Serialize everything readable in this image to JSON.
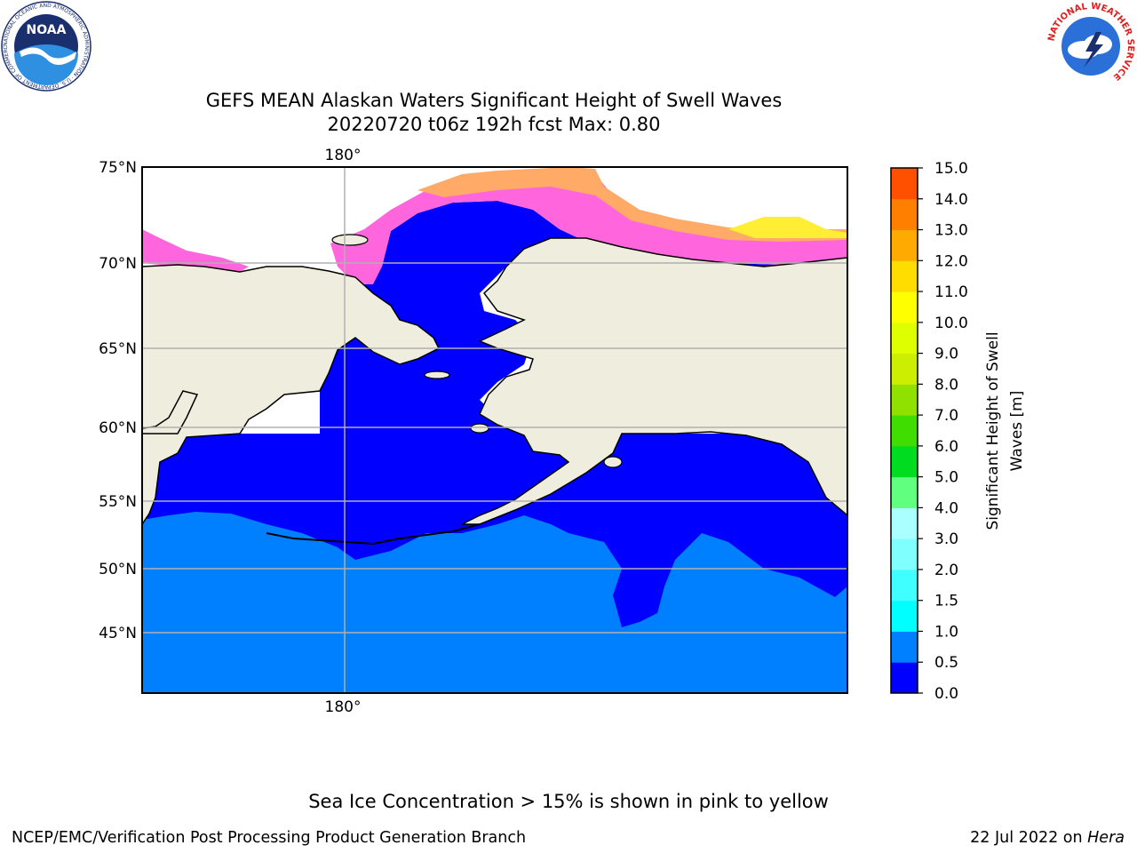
{
  "title": {
    "line1": "GEFS MEAN Alaskan Waters Significant Height of Swell Waves",
    "line2": "20220720 t06z 192h fcst   Max: 0.80"
  },
  "map": {
    "lat_labels": [
      "75°N",
      "70°N",
      "65°N",
      "60°N",
      "55°N",
      "50°N",
      "45°N"
    ],
    "lon_label_top": "180°",
    "lon_label_bottom": "180°",
    "colors": {
      "land": "#efedde",
      "ocean_low": "#0000ff",
      "ocean_mid": "#0080ff",
      "ice_pink": "#ff66dd",
      "ice_orange": "#ffaa66",
      "ice_yellow": "#ffee33",
      "grid": "#b0b0b0"
    }
  },
  "colorbar": {
    "label": "Significant Height of Swell Waves [m]",
    "label_line1": "Significant Height of Swell",
    "label_line2": "Waves [m]",
    "ticks": [
      "15.0",
      "14.0",
      "13.0",
      "12.0",
      "11.0",
      "10.0",
      "9.0",
      "8.0",
      "7.0",
      "6.0",
      "5.0",
      "4.0",
      "3.0",
      "2.0",
      "1.5",
      "1.0",
      "0.5",
      "0.0"
    ],
    "colors": [
      "#0000ff",
      "#0080ff",
      "#00ffff",
      "#40ffff",
      "#80ffff",
      "#aaffff",
      "#60ff80",
      "#00dd20",
      "#40dd00",
      "#90e000",
      "#ccee00",
      "#ddff00",
      "#ffff00",
      "#ffdd00",
      "#ffaa00",
      "#ff8000",
      "#ff5000",
      "#ff2000",
      "#ff0000"
    ]
  },
  "footer": {
    "note": "Sea Ice Concentration > 15% is shown in pink to yellow",
    "left": "NCEP/EMC/Verification Post Processing Product Generation Branch",
    "right_prefix": "22 Jul 2022 on ",
    "right_host": "Hera"
  },
  "logos": {
    "noaa_text": "NOAA",
    "noaa_ring": "NATIONAL OCEANIC AND ATMOSPHERIC ADMINISTRATION · U.S. DEPARTMENT OF COMMERCE",
    "nws_ring": "NATIONAL WEATHER SERVICE"
  }
}
